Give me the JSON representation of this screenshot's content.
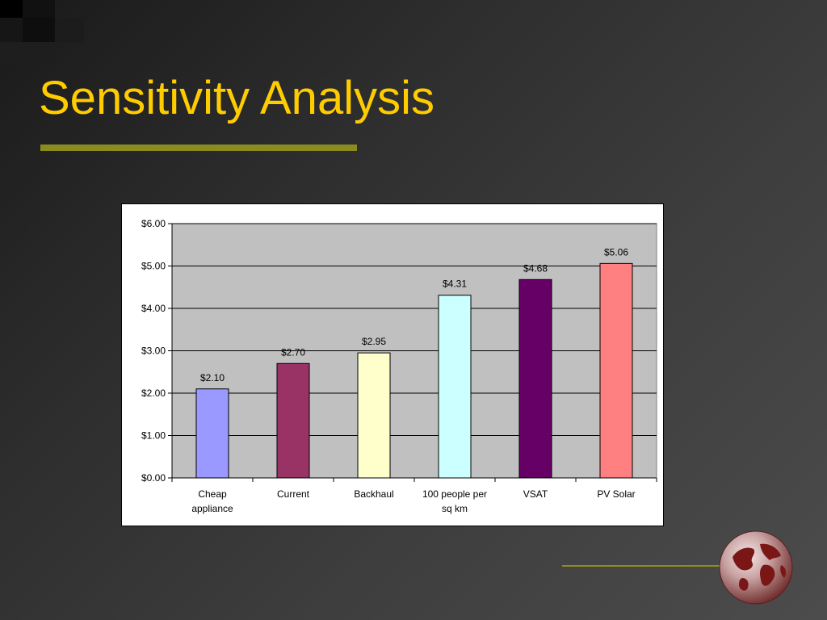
{
  "slide": {
    "title": "Sensitivity Analysis"
  },
  "chart_data": {
    "type": "bar",
    "categories": [
      "Cheap appliance",
      "Current",
      "Backhaul",
      "100 people per sq km",
      "VSAT",
      "PV Solar"
    ],
    "category_lines": [
      [
        "Cheap",
        "appliance"
      ],
      [
        "Current"
      ],
      [
        "Backhaul"
      ],
      [
        "100 people per",
        "sq km"
      ],
      [
        "VSAT"
      ],
      [
        "PV Solar"
      ]
    ],
    "values": [
      2.1,
      2.7,
      2.95,
      4.31,
      4.68,
      5.06
    ],
    "data_labels": [
      "$2.10",
      "$2.70",
      "$2.95",
      "$4.31",
      "$4.68",
      "$5.06"
    ],
    "bar_colors": [
      "#9999ff",
      "#993366",
      "#ffffcc",
      "#ccffff",
      "#660066",
      "#ff8080"
    ],
    "ylim": [
      0,
      6
    ],
    "yticks": [
      0,
      1,
      2,
      3,
      4,
      5,
      6
    ],
    "ytick_labels": [
      "$0.00",
      "$1.00",
      "$2.00",
      "$3.00",
      "$4.00",
      "$5.00",
      "$6.00"
    ],
    "plot_background": "#c0c0c0",
    "grid": true,
    "legend": false
  },
  "colors": {
    "title": "#ffcc00",
    "accent_rule": "#8c8c1e"
  }
}
